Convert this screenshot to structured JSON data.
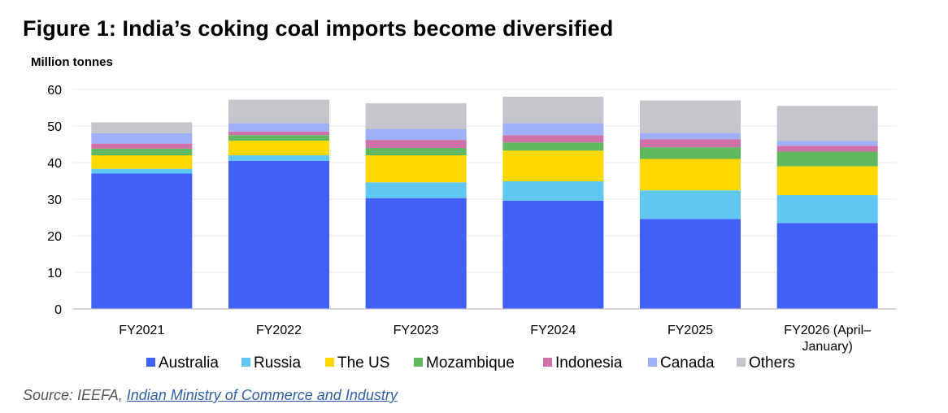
{
  "figure": {
    "title": "Figure 1: India’s coking coal imports become diversified"
  },
  "source": {
    "prefix": "Source: IEEFA, ",
    "link_text": "Indian Ministry of Commerce and Industry"
  },
  "colors": {
    "Australia": "#4060f8",
    "Russia": "#60c8f0",
    "The US": "#ffd800",
    "Mozambique": "#60b860",
    "Indonesia": "#d070a8",
    "Canada": "#a0b0f8",
    "Others": "#c4c6cc",
    "grid": "#e8e8e8",
    "axis": "#bfbfbf"
  },
  "chart_data": {
    "type": "bar",
    "stacked": true,
    "title": "Figure 1: India’s coking coal imports become diversified",
    "ylabel": "Million tonnes",
    "xlabel": "",
    "ylim": [
      0,
      60
    ],
    "yticks": [
      0,
      10,
      20,
      30,
      40,
      50,
      60
    ],
    "grid": true,
    "legend_position": "bottom",
    "categories": [
      [
        "FY2021"
      ],
      [
        "FY2022"
      ],
      [
        "FY2023"
      ],
      [
        "FY2024"
      ],
      [
        "FY2025"
      ],
      [
        "FY2026 (April–",
        "January)"
      ]
    ],
    "series": [
      {
        "name": "Australia",
        "values": [
          37.0,
          40.5,
          30.3,
          29.6,
          24.6,
          23.5
        ]
      },
      {
        "name": "Russia",
        "values": [
          1.3,
          1.5,
          4.3,
          5.3,
          7.8,
          7.6
        ]
      },
      {
        "name": "The US",
        "values": [
          3.7,
          4.0,
          7.4,
          8.4,
          8.6,
          7.9
        ]
      },
      {
        "name": "Mozambique",
        "values": [
          1.8,
          1.5,
          2.0,
          2.2,
          3.2,
          4.0
        ]
      },
      {
        "name": "Indonesia",
        "values": [
          1.4,
          1.0,
          2.2,
          2.0,
          2.2,
          1.6
        ]
      },
      {
        "name": "Canada",
        "values": [
          2.8,
          2.3,
          3.0,
          3.3,
          1.7,
          1.3
        ]
      },
      {
        "name": "Others",
        "values": [
          3.0,
          6.4,
          7.0,
          7.2,
          8.9,
          9.6
        ]
      }
    ]
  }
}
